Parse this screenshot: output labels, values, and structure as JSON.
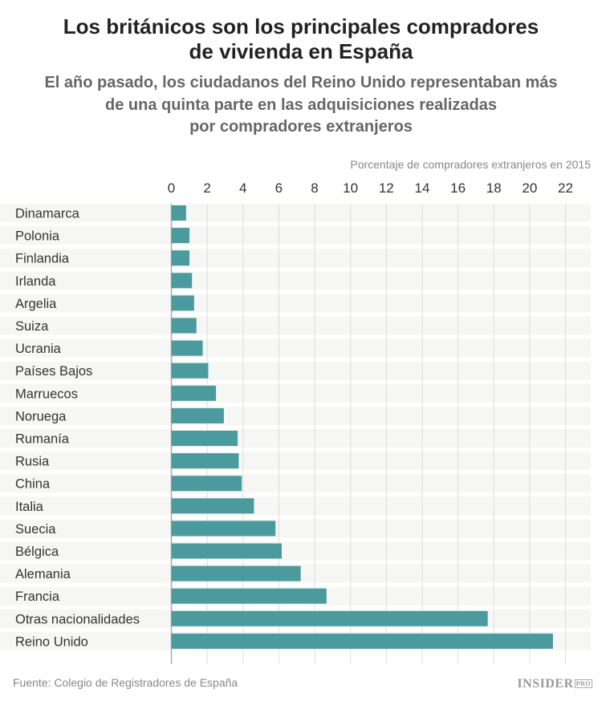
{
  "title_lines": [
    "Los británicos son los principales compradores",
    "de vivienda en España"
  ],
  "subtitle_lines": [
    "El año pasado, los ciudadanos del Reino Unido representaban más",
    "de una quinta parte en las adquisiciones realizadas",
    "por compradores extranjeros"
  ],
  "source": "Fuente: Colegio de Registradores de España",
  "logo": {
    "text": "INSIDER",
    "badge": "PRO"
  },
  "colors": {
    "bar": "#4a9a9e",
    "band": "#f6f6f4",
    "grid": "#dddddd"
  },
  "chart_data": {
    "type": "bar",
    "orientation": "horizontal",
    "xlabel": "Porcentaje de compradores extranjeros en 2015",
    "xlim": [
      0,
      22
    ],
    "ticks": [
      0,
      2,
      4,
      6,
      8,
      10,
      12,
      14,
      16,
      18,
      20,
      22
    ],
    "grid": true,
    "categories": [
      "Dinamarca",
      "Polonia",
      "Finlandia",
      "Irlanda",
      "Argelia",
      "Suiza",
      "Ucrania",
      "Países Bajos",
      "Marruecos",
      "Noruega",
      "Rumanía",
      "Rusia",
      "China",
      "Italia",
      "Suecia",
      "Bélgica",
      "Alemania",
      "Francia",
      "Otras nacionalidades",
      "Reino Unido"
    ],
    "values": [
      0.82,
      1.01,
      1.01,
      1.15,
      1.27,
      1.4,
      1.75,
      2.06,
      2.49,
      2.93,
      3.7,
      3.76,
      3.93,
      4.61,
      5.81,
      6.16,
      7.22,
      8.66,
      17.66,
      21.3
    ]
  }
}
